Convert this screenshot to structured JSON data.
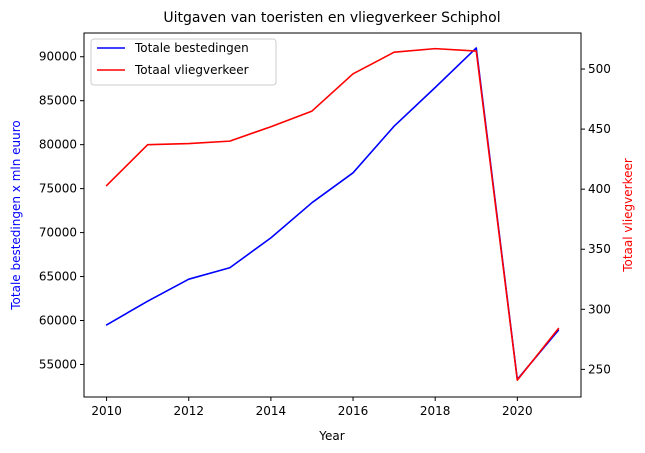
{
  "chart_data": {
    "type": "line",
    "title": "Uitgaven van toeristen en vliegverkeer Schiphol",
    "xlabel": "Year",
    "ylabel_left": "Totale bestedingen x mln euuro",
    "ylabel_right": "Totaal vliegverkeer",
    "x": [
      2010,
      2011,
      2012,
      2013,
      2014,
      2015,
      2016,
      2017,
      2018,
      2019,
      2020,
      2021
    ],
    "x_ticks": [
      2010,
      2012,
      2014,
      2016,
      2018,
      2020
    ],
    "xlim": [
      2009.45,
      2021.55
    ],
    "ylim_left": [
      51300,
      92700
    ],
    "ylim_right": [
      227,
      530
    ],
    "y_ticks_left": [
      55000,
      60000,
      65000,
      70000,
      75000,
      80000,
      85000,
      90000
    ],
    "y_ticks_right": [
      250,
      300,
      350,
      400,
      450,
      500
    ],
    "left_axis_color": "#0000ff",
    "right_axis_color": "#ff0000",
    "grid": false,
    "legend_position": "top-left",
    "series": [
      {
        "name": "Totale bestedingen",
        "axis": "left",
        "color": "#0000ff",
        "values": [
          59500,
          62200,
          64700,
          66000,
          69400,
          73400,
          76800,
          82100,
          86500,
          91000,
          53300,
          58900
        ]
      },
      {
        "name": "Totaal vliegverkeer",
        "axis": "right",
        "color": "#ff0000",
        "values": [
          403,
          437,
          438,
          440,
          452,
          465,
          496,
          514,
          517,
          515,
          241,
          284
        ]
      }
    ]
  }
}
